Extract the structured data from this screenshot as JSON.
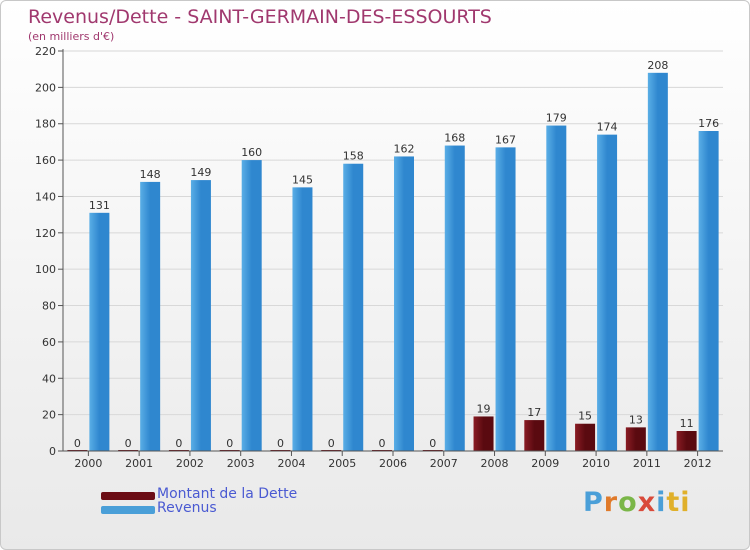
{
  "header": {
    "title": "Revenus/Dette - SAINT-GERMAIN-DES-ESSOURTS",
    "subtitle": "(en milliers d'€)"
  },
  "colors": {
    "title": "#a0386e",
    "revenus": "#4a9fd8",
    "dette": "#6b0c14",
    "legend_text": "#4a5ad2",
    "axis": "#555555"
  },
  "legend": {
    "dette_label": "Montant de la Dette",
    "revenus_label": "Revenus"
  },
  "logo": {
    "letters": [
      "P",
      "r",
      "o",
      "x",
      "i",
      "ti"
    ]
  },
  "chart_data": {
    "type": "bar",
    "title": "Revenus/Dette - SAINT-GERMAIN-DES-ESSOURTS",
    "subtitle": "(en milliers d'€)",
    "xlabel": "",
    "ylabel": "",
    "ylim": [
      0,
      220
    ],
    "yticks": [
      0,
      20,
      40,
      60,
      80,
      100,
      120,
      140,
      160,
      180,
      200,
      220
    ],
    "grid": true,
    "legend_position": "bottom-left",
    "categories": [
      "2000",
      "2001",
      "2002",
      "2003",
      "2004",
      "2005",
      "2006",
      "2007",
      "2008",
      "2009",
      "2010",
      "2011",
      "2012"
    ],
    "series": [
      {
        "name": "Montant de la Dette",
        "values": [
          0,
          0,
          0,
          0,
          0,
          0,
          0,
          0,
          19,
          17,
          15,
          13,
          11
        ]
      },
      {
        "name": "Revenus",
        "values": [
          131,
          148,
          149,
          160,
          145,
          158,
          162,
          168,
          167,
          179,
          174,
          208,
          176
        ]
      }
    ]
  }
}
